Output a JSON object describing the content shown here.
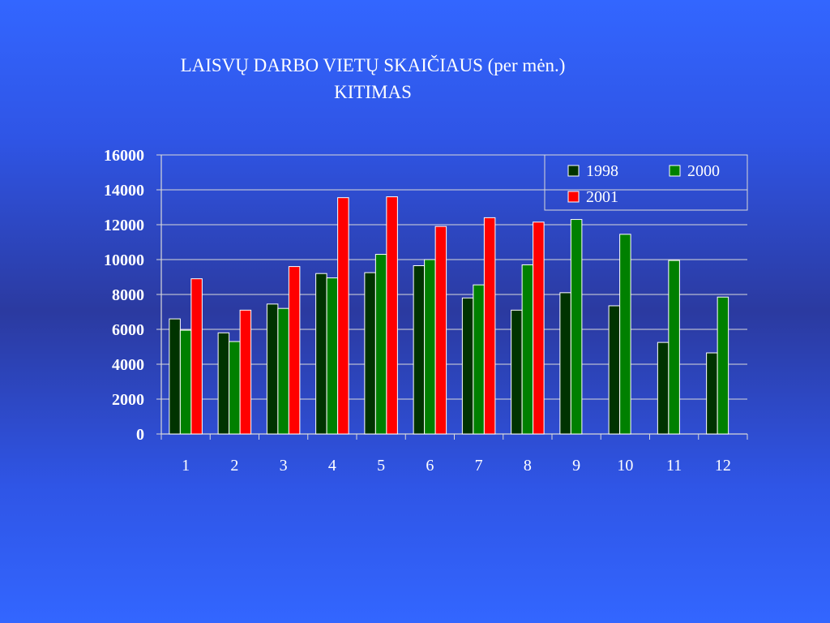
{
  "title_line1": "LAISVŲ DARBO VIETŲ SKAIČIAUS (per mėn.)",
  "title_line2": "KITIMAS",
  "chart_data": {
    "type": "bar",
    "title": "LAISVŲ DARBO VIETŲ SKAIČIAUS (per mėn.) KITIMAS",
    "xlabel": "",
    "ylabel": "",
    "categories": [
      "1",
      "2",
      "3",
      "4",
      "5",
      "6",
      "7",
      "8",
      "9",
      "10",
      "11",
      "12"
    ],
    "ylim": [
      0,
      16000
    ],
    "yticks": [
      "0",
      "2000",
      "4000",
      "6000",
      "8000",
      "10000",
      "12000",
      "14000",
      "16000"
    ],
    "grid": true,
    "legend_position": "top-right",
    "series": [
      {
        "name": "1998",
        "color": "#003300",
        "values": [
          6600,
          5800,
          7450,
          9200,
          9250,
          9650,
          7800,
          7100,
          8100,
          7350,
          5250,
          4650
        ]
      },
      {
        "name": "2000",
        "color": "#008000",
        "values": [
          5950,
          5300,
          7200,
          8950,
          10300,
          10000,
          8550,
          9700,
          12300,
          11450,
          9950,
          7850
        ]
      },
      {
        "name": "2001",
        "color": "#ff0000",
        "values": [
          8900,
          7100,
          9600,
          13550,
          13600,
          11900,
          12400,
          12150,
          null,
          null,
          null,
          null
        ]
      }
    ]
  }
}
